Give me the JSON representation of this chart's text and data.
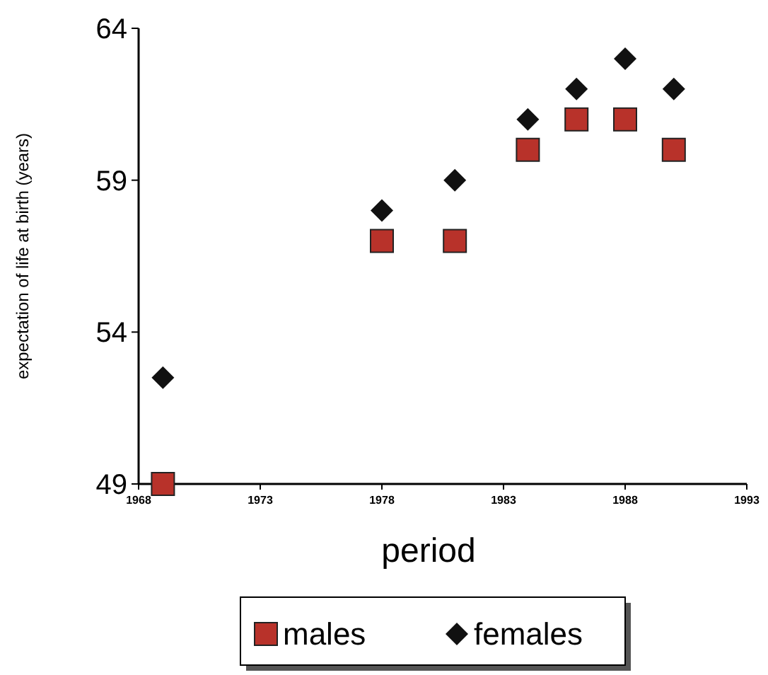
{
  "chart_data": {
    "type": "scatter",
    "xlabel": "period",
    "ylabel": "expectation of life at birth (years)",
    "xlim": [
      1968,
      1993
    ],
    "xticks": [
      1968,
      1973,
      1978,
      1983,
      1988,
      1993
    ],
    "ylim": [
      49,
      64
    ],
    "yticks": [
      49,
      54,
      59,
      64
    ],
    "grid": false,
    "legend": "bottom",
    "series": [
      {
        "name": "males",
        "color": "#b8322a",
        "marker": "square",
        "x": [
          1969,
          1978,
          1981,
          1984,
          1986,
          1988,
          1990
        ],
        "values": [
          49,
          57,
          57,
          60,
          61,
          61,
          60
        ]
      },
      {
        "name": "females",
        "color": "#111111",
        "marker": "diamond",
        "x": [
          1969,
          1978,
          1981,
          1984,
          1986,
          1988,
          1990
        ],
        "values": [
          52.5,
          58,
          59,
          61,
          62,
          63,
          62
        ]
      }
    ]
  }
}
